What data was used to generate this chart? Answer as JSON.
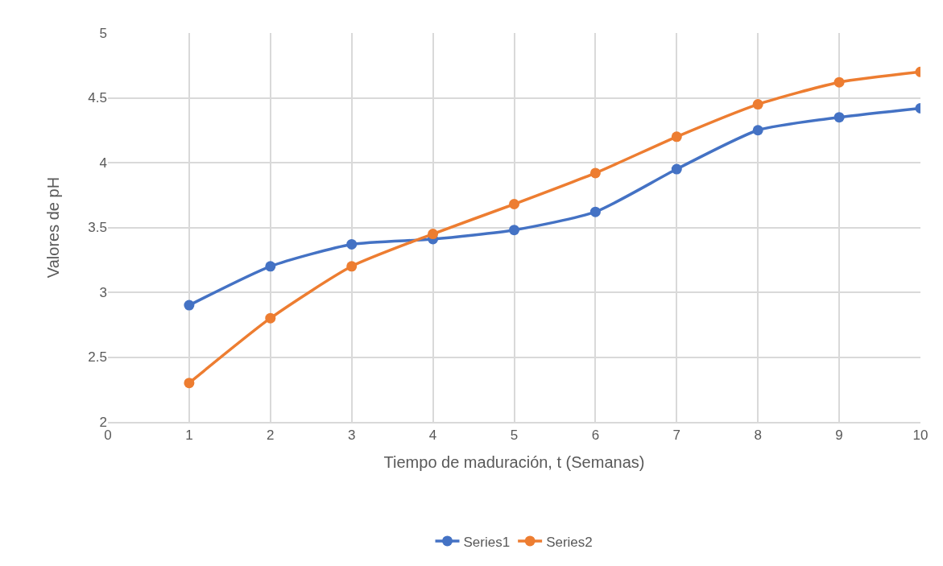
{
  "chart_data": {
    "type": "line",
    "xlabel": "Tiempo de maduración, t (Semanas)",
    "ylabel": "Valores de pH",
    "x": [
      1,
      2,
      3,
      4,
      5,
      6,
      7,
      8,
      9,
      10
    ],
    "series": [
      {
        "name": "Series1",
        "color": "#4472c4",
        "values": [
          2.9,
          3.2,
          3.37,
          3.41,
          3.48,
          3.62,
          3.95,
          4.25,
          4.35,
          4.42
        ]
      },
      {
        "name": "Series2",
        "color": "#ed7d31",
        "values": [
          2.3,
          2.8,
          3.2,
          3.45,
          3.68,
          3.92,
          4.2,
          4.45,
          4.62,
          4.7
        ]
      }
    ],
    "xlim": [
      0,
      10
    ],
    "xticks": [
      0,
      1,
      2,
      3,
      4,
      5,
      6,
      7,
      8,
      9,
      10
    ],
    "ylim": [
      2,
      5
    ],
    "yticks": [
      2,
      2.5,
      3,
      3.5,
      4,
      4.5,
      5
    ],
    "grid": true,
    "legend": "bottom",
    "marker": "circle",
    "line_style": "solid"
  }
}
